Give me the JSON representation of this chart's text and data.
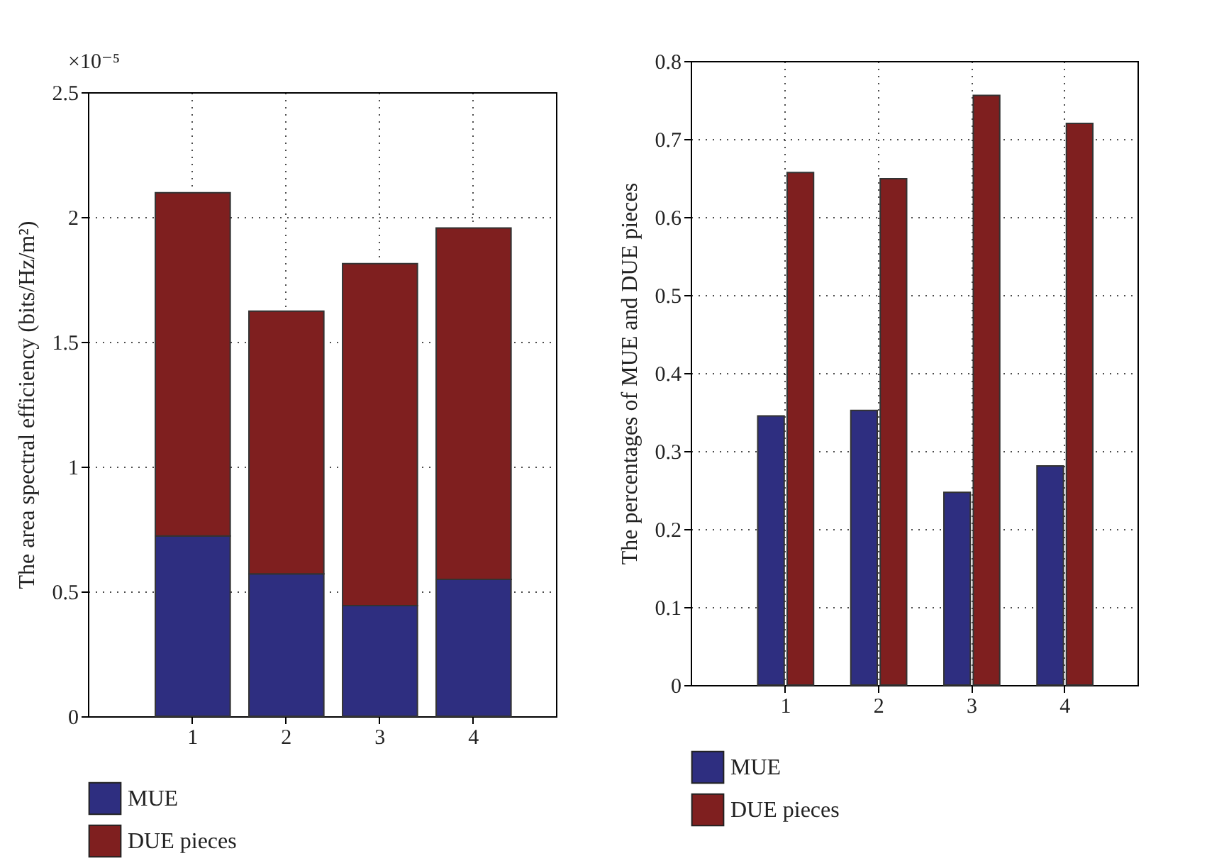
{
  "chart_data": [
    {
      "type": "bar",
      "stacked": true,
      "categories": [
        "1",
        "2",
        "3",
        "4"
      ],
      "series": [
        {
          "name": "MUE",
          "color": "#2e2e80",
          "values": [
            0.722,
            0.57,
            0.443,
            0.548
          ]
        },
        {
          "name": "DUE pieces",
          "color": "#7f1f1f",
          "values": [
            1.375,
            1.053,
            1.37,
            1.408
          ]
        }
      ],
      "ylabel": "The area spectral efficiency (bits/Hz/m²)",
      "annotations": [
        "×10⁻⁵"
      ],
      "ylim": [
        0,
        2.5
      ],
      "yticks": [
        0,
        0.5,
        1,
        1.5,
        2,
        2.5
      ],
      "grid": true,
      "legend": "bottom"
    },
    {
      "type": "bar",
      "categories": [
        "1",
        "2",
        "3",
        "4"
      ],
      "series": [
        {
          "name": "MUE",
          "color": "#2e2e80",
          "values": [
            0.345,
            0.352,
            0.247,
            0.281
          ]
        },
        {
          "name": "DUE pieces",
          "color": "#7f1f1f",
          "values": [
            0.657,
            0.649,
            0.756,
            0.72
          ]
        }
      ],
      "ylabel": "The percentages of MUE and DUE pieces",
      "ylim": [
        0,
        0.8
      ],
      "yticks": [
        0,
        0.1,
        0.2,
        0.3,
        0.4,
        0.5,
        0.6,
        0.7,
        0.8
      ],
      "grid": true,
      "legend": "bottom"
    }
  ]
}
